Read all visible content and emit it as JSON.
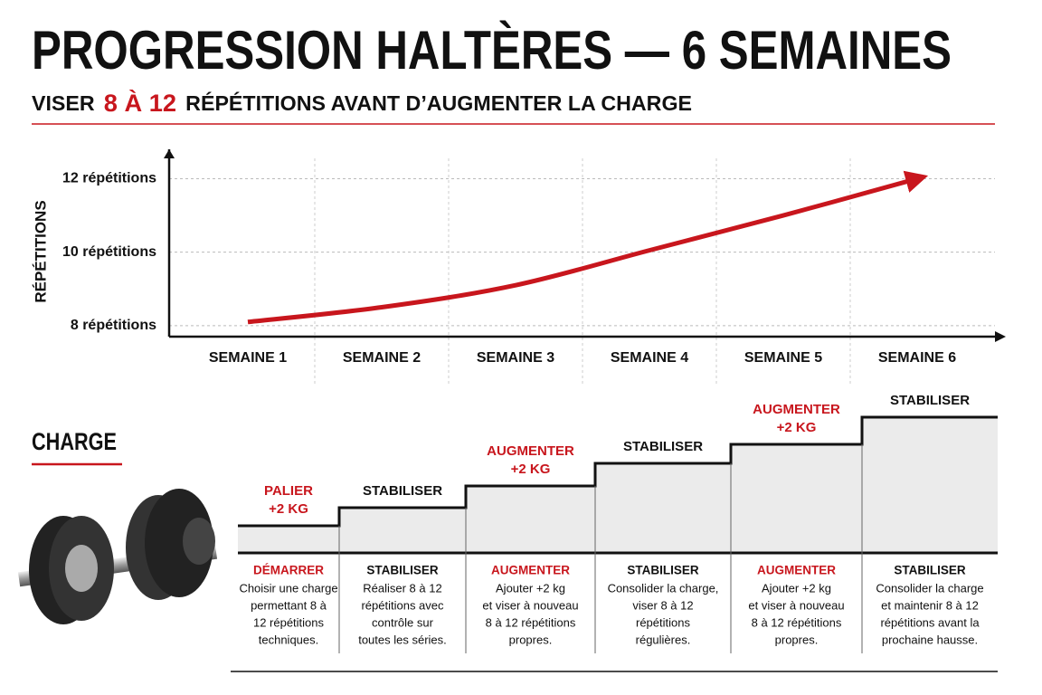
{
  "chart_data": {
    "type": "line",
    "title": "PROGRESSION HALTÈRES — 6 SEMAINES",
    "subtitle": [
      "VISER",
      "8 À 12",
      "RÉPÉTITIONS AVANT D’AUGMENTER LA CHARGE"
    ],
    "y_label": "RÉPÉTITIONS",
    "categories": [
      "SEMAINE 1",
      "SEMAINE 2",
      "SEMAINE 3",
      "SEMAINE 4",
      "SEMAINE 5",
      "SEMAINE 6"
    ],
    "values": [
      8.1,
      8.5,
      9.1,
      10.05,
      11,
      12
    ],
    "color": "#c8161d",
    "ylim": [
      7.7,
      12.8
    ],
    "yticks": [
      {
        "value": 8,
        "label": "8 répétitions"
      },
      {
        "value": 10,
        "label": "10 répétitions"
      },
      {
        "value": 12,
        "label": "12 répétitions"
      }
    ],
    "grid": true
  },
  "charge": {
    "title": "CHARGE",
    "steps": [
      {
        "label": [
          "PALIER",
          "+2 KG"
        ],
        "heading": "DÉMARRER",
        "color": "#c8161d",
        "text": [
          "Choisir une charge",
          "permettant 8 à",
          "12 répétitions",
          "techniques."
        ]
      },
      {
        "label": [
          "STABILISER"
        ],
        "heading": "STABILISER",
        "color": "#111111",
        "text": [
          "Réaliser 8 à 12",
          "répétitions avec",
          "contrôle sur",
          "toutes les séries."
        ]
      },
      {
        "label": [
          "AUGMENTER",
          "+2 KG"
        ],
        "heading": "AUGMENTER",
        "color": "#c8161d",
        "text": [
          "Ajouter +2 kg",
          "et viser à nouveau",
          "8 à 12 répétitions",
          "propres."
        ]
      },
      {
        "label": [
          "STABILISER"
        ],
        "heading": "STABILISER",
        "color": "#111111",
        "text": [
          "Consolider la charge,",
          "viser 8 à 12",
          "répétitions",
          "régulières."
        ]
      },
      {
        "label": [
          "AUGMENTER",
          "+2 KG"
        ],
        "heading": "AUGMENTER",
        "color": "#c8161d",
        "text": [
          "Ajouter +2 kg",
          "et viser à nouveau",
          "8 à 12 répétitions",
          "propres."
        ]
      },
      {
        "label": [
          "STABILISER"
        ],
        "heading": "STABILISER",
        "color": "#111111",
        "text": [
          "Consolider la charge",
          "et maintenir 8 à 12",
          "répétitions avant la",
          "prochaine hausse."
        ]
      }
    ]
  }
}
